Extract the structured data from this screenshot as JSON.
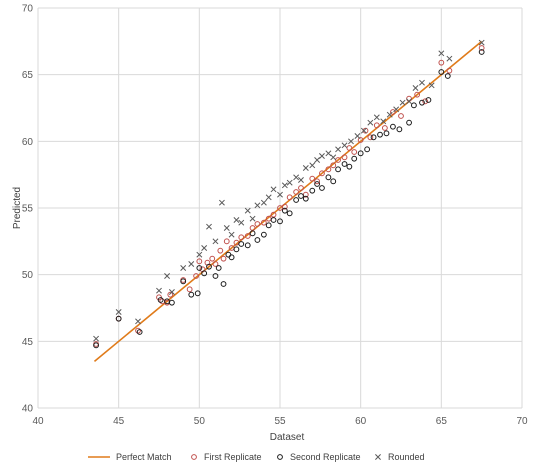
{
  "chart_data": {
    "type": "scatter",
    "title": "",
    "xlabel": "Dataset",
    "ylabel": "Predicted",
    "xlim": [
      40,
      70
    ],
    "ylim": [
      40,
      70
    ],
    "x_ticks": [
      40,
      45,
      50,
      55,
      60,
      65,
      70
    ],
    "y_ticks": [
      40,
      45,
      50,
      55,
      60,
      65,
      70
    ],
    "grid": "both-major",
    "legend_position": "bottom",
    "series": [
      {
        "name": "Perfect Match",
        "kind": "line",
        "color": "#e07b1a",
        "x": [
          43.5,
          67.5
        ],
        "y": [
          43.5,
          67.5
        ]
      },
      {
        "name": "First Replicate",
        "kind": "scatter",
        "marker": "circle",
        "color": "#c0504d",
        "x": [
          43.6,
          45.0,
          46.2,
          47.5,
          47.7,
          48.0,
          48.2,
          49.0,
          49.4,
          49.8,
          50.0,
          50.2,
          50.5,
          50.8,
          51.0,
          51.3,
          51.5,
          51.7,
          52.0,
          52.3,
          52.6,
          53.0,
          53.3,
          53.6,
          54.0,
          54.3,
          54.6,
          55.0,
          55.3,
          55.6,
          56.0,
          56.3,
          56.6,
          57.0,
          57.3,
          57.6,
          58.0,
          58.3,
          58.6,
          59.0,
          59.3,
          59.6,
          60.0,
          60.3,
          60.6,
          61.0,
          61.5,
          62.0,
          62.5,
          63.0,
          63.5,
          64.0,
          65.0,
          65.5,
          67.5
        ],
        "y": [
          44.8,
          46.7,
          45.8,
          48.3,
          48.0,
          47.9,
          48.5,
          49.6,
          48.9,
          49.9,
          51.0,
          50.4,
          50.9,
          51.2,
          50.8,
          51.8,
          51.2,
          52.5,
          52.0,
          52.4,
          52.8,
          52.9,
          53.5,
          53.8,
          53.9,
          54.2,
          54.5,
          55.0,
          55.1,
          55.8,
          56.2,
          56.5,
          56.0,
          57.2,
          57.0,
          57.6,
          57.9,
          58.2,
          58.6,
          58.8,
          59.5,
          59.2,
          60.1,
          60.8,
          60.3,
          61.2,
          61.0,
          62.2,
          61.9,
          63.2,
          63.5,
          63.0,
          65.9,
          65.3,
          67.0
        ]
      },
      {
        "name": "Second Replicate",
        "kind": "scatter",
        "marker": "circle",
        "color": "#1a1a1a",
        "x": [
          43.6,
          45.0,
          46.3,
          47.6,
          48.0,
          48.3,
          49.0,
          49.5,
          49.9,
          50.0,
          50.3,
          50.6,
          51.0,
          51.2,
          51.5,
          51.8,
          52.0,
          52.3,
          52.6,
          53.0,
          53.3,
          53.6,
          54.0,
          54.3,
          54.6,
          55.0,
          55.3,
          55.6,
          56.0,
          56.3,
          56.6,
          57.0,
          57.3,
          57.6,
          58.0,
          58.3,
          58.6,
          59.0,
          59.3,
          59.6,
          60.0,
          60.4,
          60.8,
          61.2,
          61.6,
          62.0,
          62.4,
          63.0,
          63.3,
          63.8,
          64.2,
          65.0,
          65.4,
          67.5
        ],
        "y": [
          44.7,
          46.7,
          45.7,
          48.1,
          48.0,
          47.9,
          49.5,
          48.5,
          48.6,
          50.5,
          50.1,
          50.6,
          49.9,
          50.5,
          49.3,
          51.5,
          51.3,
          51.9,
          52.3,
          52.2,
          53.1,
          52.6,
          53.0,
          53.7,
          54.1,
          54.0,
          54.8,
          54.6,
          55.6,
          55.9,
          55.7,
          56.3,
          56.8,
          56.5,
          57.3,
          57.0,
          57.9,
          58.3,
          58.1,
          58.7,
          59.1,
          59.4,
          60.3,
          60.5,
          60.6,
          61.1,
          60.9,
          61.4,
          62.7,
          62.9,
          63.1,
          65.2,
          64.9,
          66.7
        ]
      },
      {
        "name": "Rounded",
        "kind": "scatter",
        "marker": "x",
        "color": "#595959",
        "x": [
          43.6,
          45.0,
          46.2,
          47.5,
          48.0,
          48.3,
          49.0,
          49.5,
          50.0,
          50.3,
          50.6,
          51.0,
          51.4,
          51.7,
          52.0,
          52.3,
          52.6,
          53.0,
          53.3,
          53.6,
          54.0,
          54.3,
          54.6,
          55.0,
          55.3,
          55.6,
          56.0,
          56.3,
          56.6,
          57.0,
          57.3,
          57.6,
          58.0,
          58.3,
          58.6,
          59.0,
          59.4,
          59.8,
          60.2,
          60.6,
          61.0,
          61.4,
          61.8,
          62.2,
          62.6,
          63.0,
          63.4,
          63.8,
          64.4,
          65.0,
          65.5,
          67.5
        ],
        "y": [
          45.2,
          47.2,
          46.5,
          48.8,
          49.9,
          48.7,
          50.5,
          50.8,
          51.5,
          52.0,
          53.6,
          52.5,
          55.4,
          53.5,
          53.0,
          54.1,
          53.9,
          54.8,
          54.2,
          55.2,
          55.4,
          55.8,
          56.4,
          56.0,
          56.7,
          56.9,
          57.3,
          57.1,
          58.0,
          58.2,
          58.6,
          58.9,
          59.1,
          58.8,
          59.4,
          59.7,
          60.0,
          60.4,
          60.8,
          61.4,
          61.8,
          61.5,
          62.0,
          62.4,
          62.9,
          63.0,
          64.0,
          64.4,
          64.2,
          66.6,
          66.2,
          67.4
        ]
      }
    ]
  }
}
